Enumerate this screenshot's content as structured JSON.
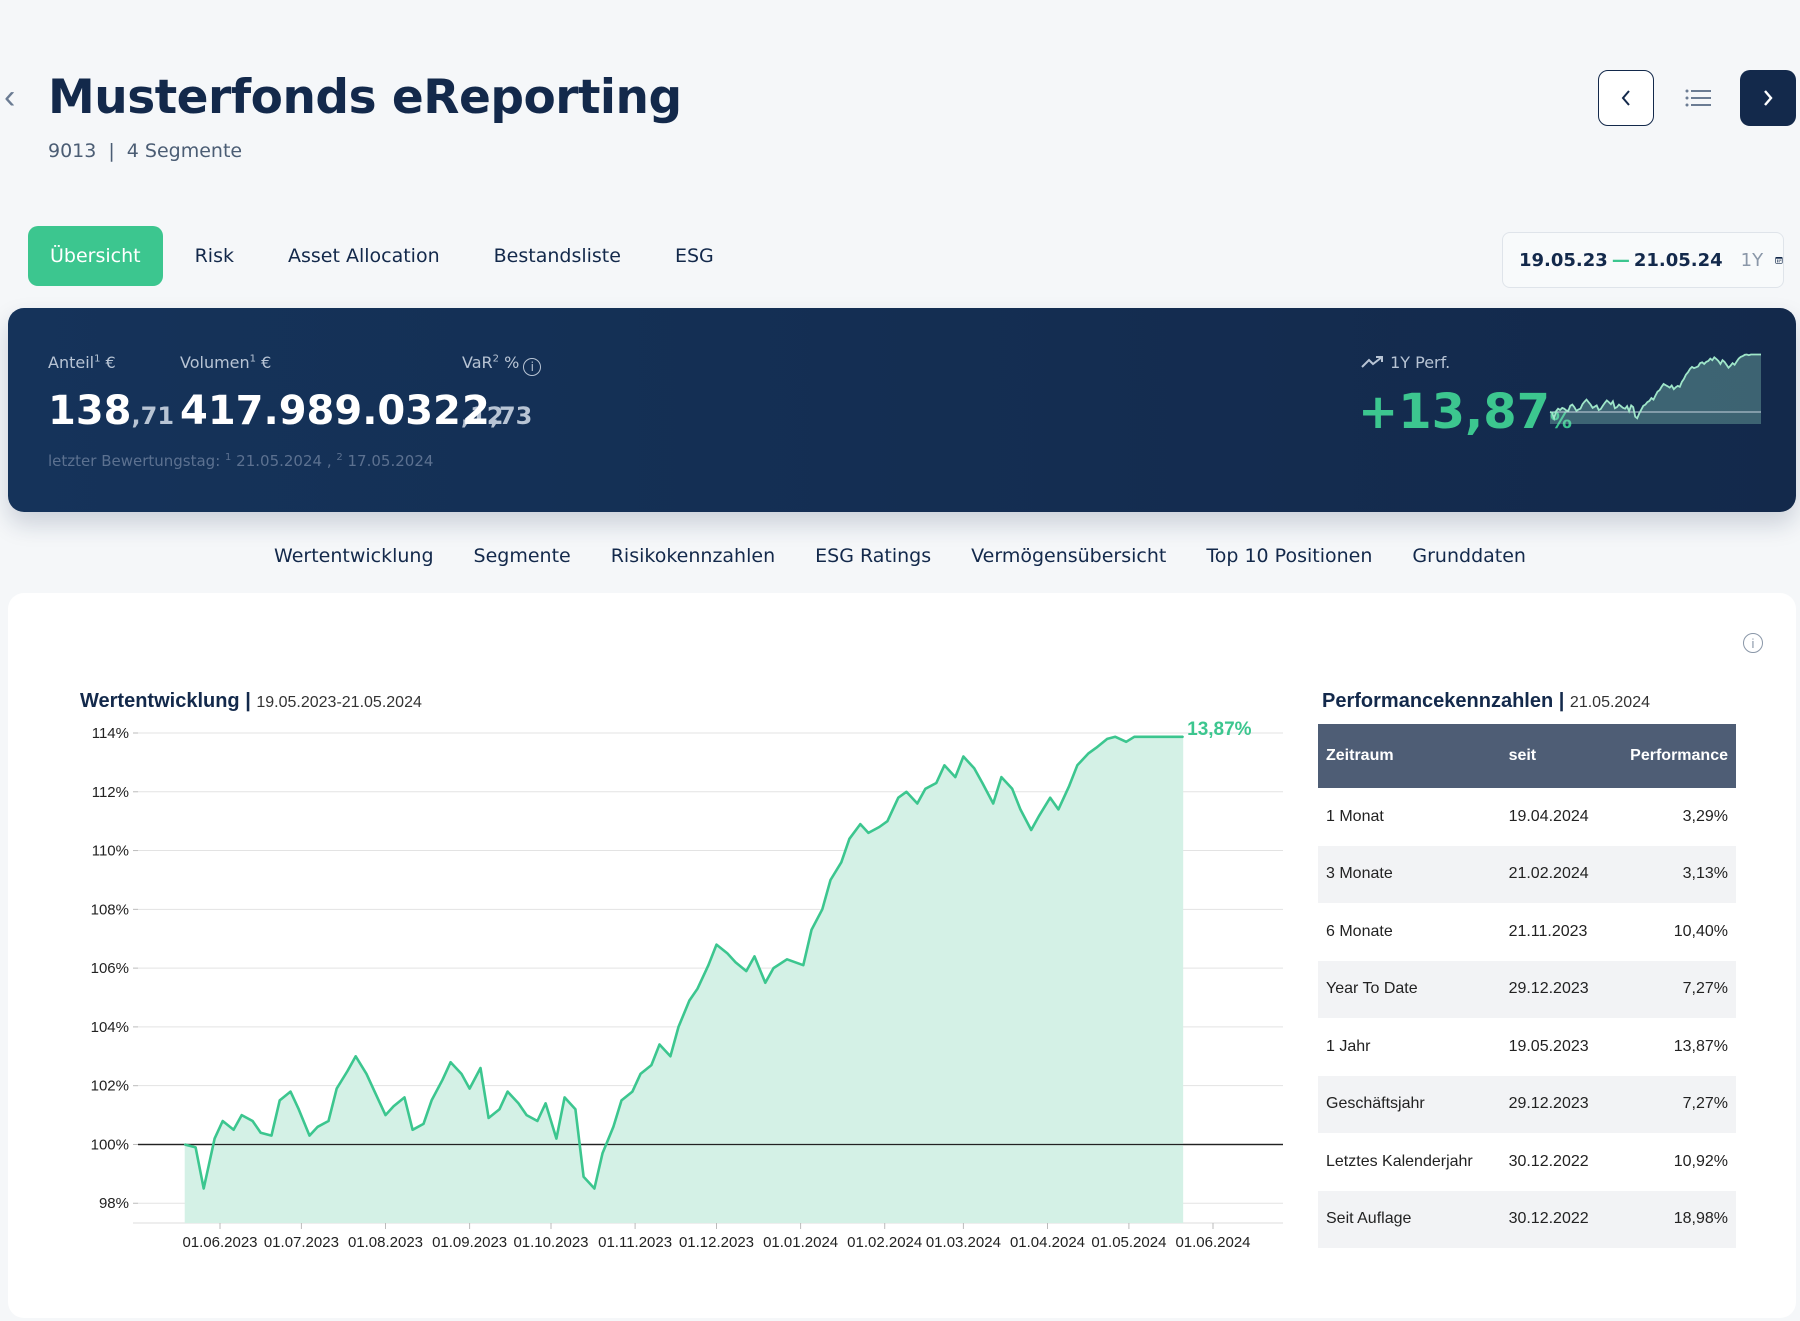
{
  "header": {
    "title": "Musterfonds eReporting",
    "fund_id": "9013",
    "separator": "|",
    "segments": "4 Segmente"
  },
  "tabs": [
    "Übersicht",
    "Risk",
    "Asset Allocation",
    "Bestandsliste",
    "ESG"
  ],
  "date_range": {
    "from": "19.05.23",
    "dash": "—",
    "to": "21.05.24",
    "period": "1Y"
  },
  "kpis": {
    "anteil": {
      "label": "Anteil",
      "sup": "1",
      "unit": " €",
      "int": "138",
      "dec": ",71"
    },
    "volumen": {
      "label": "Volumen",
      "sup": "1",
      "unit": " €",
      "int": "417.989.032",
      "dec": ",12"
    },
    "var": {
      "label": "VaR",
      "sup": "2",
      "unit": " %",
      "int": "2",
      "dec": ",73"
    },
    "footnote_prefix": "letzter Bewertungstag: ",
    "footnote_1_sup": "1",
    "footnote_1": " 21.05.2024 , ",
    "footnote_2_sup": "2",
    "footnote_2": " 17.05.2024",
    "perf_label": "1Y Perf.",
    "perf_value": "+13,87",
    "perf_pct": "%"
  },
  "subnav": [
    "Wertentwicklung",
    "Segmente",
    "Risikokennzahlen",
    "ESG Ratings",
    "Vermögensübersicht",
    "Top 10 Positionen",
    "Grunddaten"
  ],
  "chart_title": "Wertentwicklung",
  "chart_range": "19.05.2023-21.05.2024",
  "chart_data": {
    "type": "area",
    "title": "Wertentwicklung",
    "subtitle": "19.05.2023-21.05.2024",
    "x_tick_labels": [
      "01.06.2023",
      "01.07.2023",
      "01.08.2023",
      "01.09.2023",
      "01.10.2023",
      "01.11.2023",
      "01.12.2023",
      "01.01.2024",
      "01.02.2024",
      "01.03.2024",
      "01.04.2024",
      "01.05.2024",
      "01.06.2024"
    ],
    "y_tick_labels": [
      "98%",
      "100%",
      "102%",
      "104%",
      "106%",
      "108%",
      "110%",
      "112%",
      "114%"
    ],
    "ylim": [
      97.6,
      114
    ],
    "end_label": "13,87%",
    "line_color": "#3cc68f",
    "fill_color": "#d4f1e6",
    "series": [
      {
        "x": [
          "2023-05-19",
          "2023-05-23",
          "2023-05-26",
          "2023-05-30",
          "2023-06-02",
          "2023-06-06",
          "2023-06-09",
          "2023-06-13",
          "2023-06-16",
          "2023-06-20",
          "2023-06-23",
          "2023-06-27",
          "2023-06-30",
          "2023-07-04",
          "2023-07-07",
          "2023-07-11",
          "2023-07-14",
          "2023-07-18",
          "2023-07-21",
          "2023-07-25",
          "2023-07-28",
          "2023-08-01",
          "2023-08-04",
          "2023-08-08",
          "2023-08-11",
          "2023-08-15",
          "2023-08-18",
          "2023-08-22",
          "2023-08-25",
          "2023-08-29",
          "2023-09-01",
          "2023-09-05",
          "2023-09-08",
          "2023-09-12",
          "2023-09-15",
          "2023-09-19",
          "2023-09-22",
          "2023-09-26",
          "2023-09-29",
          "2023-10-03",
          "2023-10-06",
          "2023-10-10",
          "2023-10-13",
          "2023-10-17",
          "2023-10-20",
          "2023-10-24",
          "2023-10-27",
          "2023-10-31",
          "2023-11-03",
          "2023-11-07",
          "2023-11-10",
          "2023-11-14",
          "2023-11-17",
          "2023-11-21",
          "2023-11-24",
          "2023-11-28",
          "2023-12-01",
          "2023-12-05",
          "2023-12-08",
          "2023-12-12",
          "2023-12-15",
          "2023-12-19",
          "2023-12-22",
          "2023-12-27",
          "2024-01-02",
          "2024-01-05",
          "2024-01-09",
          "2024-01-12",
          "2024-01-16",
          "2024-01-19",
          "2024-01-23",
          "2024-01-26",
          "2024-01-30",
          "2024-02-02",
          "2024-02-06",
          "2024-02-09",
          "2024-02-13",
          "2024-02-16",
          "2024-02-20",
          "2024-02-23",
          "2024-02-27",
          "2024-03-01",
          "2024-03-05",
          "2024-03-08",
          "2024-03-12",
          "2024-03-15",
          "2024-03-19",
          "2024-03-22",
          "2024-03-26",
          "2024-03-29",
          "2024-04-02",
          "2024-04-05",
          "2024-04-09",
          "2024-04-12",
          "2024-04-16",
          "2024-04-19",
          "2024-04-23",
          "2024-04-26",
          "2024-04-30",
          "2024-05-03",
          "2024-05-07",
          "2024-05-10",
          "2024-05-14",
          "2024-05-17",
          "2024-05-21"
        ],
        "y": [
          100.0,
          99.9,
          98.5,
          100.2,
          100.8,
          100.5,
          101.0,
          100.8,
          100.4,
          100.3,
          101.5,
          101.8,
          101.2,
          100.3,
          100.6,
          100.8,
          101.9,
          102.5,
          103.0,
          102.4,
          101.8,
          101.0,
          101.3,
          101.6,
          100.5,
          100.7,
          101.5,
          102.2,
          102.8,
          102.4,
          101.9,
          102.6,
          100.9,
          101.2,
          101.8,
          101.4,
          101.0,
          100.8,
          101.4,
          100.2,
          101.6,
          101.2,
          98.9,
          98.5,
          99.7,
          100.6,
          101.5,
          101.8,
          102.4,
          102.7,
          103.4,
          103.0,
          104.0,
          104.9,
          105.3,
          106.1,
          106.8,
          106.5,
          106.2,
          105.9,
          106.4,
          105.5,
          106.0,
          106.3,
          106.1,
          107.3,
          108.0,
          109.0,
          109.6,
          110.4,
          110.9,
          110.6,
          110.8,
          111.0,
          111.8,
          112.0,
          111.6,
          112.1,
          112.3,
          112.9,
          112.5,
          113.2,
          112.8,
          112.3,
          111.6,
          112.5,
          112.1,
          111.4,
          110.7,
          111.2,
          111.8,
          111.4,
          112.2,
          112.9,
          113.3,
          113.5,
          113.8,
          113.87,
          113.7,
          113.87,
          113.87,
          113.87,
          113.87,
          113.87,
          113.87
        ]
      }
    ]
  },
  "perf_title": "Performancekennzahlen",
  "perf_date": "21.05.2024",
  "perf_table": {
    "headers": [
      "Zeitraum",
      "seit",
      "Performance"
    ],
    "rows": [
      [
        "1 Monat",
        "19.04.2024",
        "3,29%"
      ],
      [
        "3 Monate",
        "21.02.2024",
        "3,13%"
      ],
      [
        "6 Monate",
        "21.11.2023",
        "10,40%"
      ],
      [
        "Year To Date",
        "29.12.2023",
        "7,27%"
      ],
      [
        "1 Jahr",
        "19.05.2023",
        "13,87%"
      ],
      [
        "Geschäftsjahr",
        "29.12.2023",
        "7,27%"
      ],
      [
        "Letztes Kalenderjahr",
        "30.12.2022",
        "10,92%"
      ],
      [
        "Seit Auflage",
        "30.12.2022",
        "18,98%"
      ]
    ]
  }
}
